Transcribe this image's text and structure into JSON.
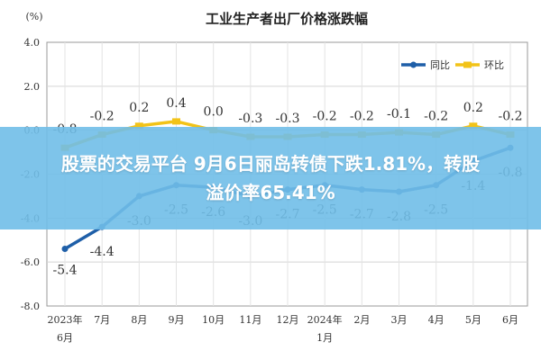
{
  "chart_data": {
    "type": "line",
    "title": "工业生产者出厂价格涨跌幅",
    "ylabel": "(%)",
    "xlabel": "",
    "ylim": [
      -8.0,
      4.0
    ],
    "yticks": [
      "4.0",
      "2.0",
      "0.0",
      "-2.0",
      "-4.0",
      "-6.0",
      "-8.0"
    ],
    "ytick_values": [
      4,
      2,
      0,
      -2,
      -4,
      -6,
      -8
    ],
    "grid": true,
    "legend_position": "top-right",
    "categories": [
      [
        "2023年",
        "6月"
      ],
      [
        "7月"
      ],
      [
        "8月"
      ],
      [
        "9月"
      ],
      [
        "10月"
      ],
      [
        "11月"
      ],
      [
        "12月"
      ],
      [
        "2024年",
        "1月"
      ],
      [
        "2月"
      ],
      [
        "3月"
      ],
      [
        "4月"
      ],
      [
        "5月"
      ],
      [
        "6月"
      ]
    ],
    "series": [
      {
        "name": "同比",
        "color": "#1f5fa8",
        "values": [
          -5.4,
          -4.4,
          -3.0,
          -2.5,
          -2.6,
          -3.0,
          -2.7,
          -2.5,
          -2.7,
          -2.8,
          -2.5,
          -1.4,
          -0.8
        ],
        "labels": [
          "-5.4",
          "-4.4",
          "-3.0",
          "-2.5",
          "-2.6",
          "-3.0",
          "-2.7",
          "-2.5",
          "-2.7",
          "-2.8",
          "-2.5",
          "-1.4",
          "-0.8"
        ]
      },
      {
        "name": "环比",
        "color": "#f2c318",
        "values": [
          -0.8,
          -0.2,
          0.2,
          0.4,
          0.0,
          -0.3,
          -0.3,
          -0.2,
          -0.2,
          -0.1,
          -0.2,
          0.2,
          -0.2
        ],
        "labels": [
          "-0.8",
          "-0.2",
          "0.2",
          "0.4",
          "0.0",
          "-0.3",
          "-0.3",
          "-0.2",
          "-0.2",
          "-0.1",
          "-0.2",
          "0.2",
          "-0.2"
        ]
      }
    ]
  },
  "banner": {
    "line1": "股票的交易平台 9月6日丽岛转债下跌1.81%，转股",
    "line2": "溢价率65.41%"
  }
}
